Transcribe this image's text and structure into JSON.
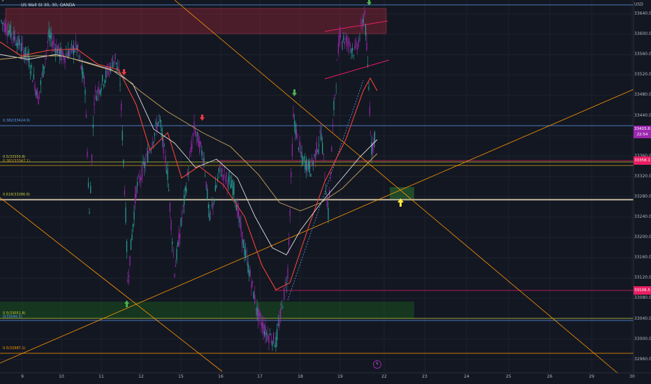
{
  "header": {
    "symbol_title": "US Wall St 30, 30, OANDA",
    "top_ticker": "9",
    "currency": "USD"
  },
  "price_axis": {
    "labels": [
      "33640.0",
      "33600.0",
      "33560.0",
      "33520.0",
      "33480.0",
      "33440.0",
      "33400.0",
      "33360.0",
      "33320.0",
      "33280.0",
      "33240.0",
      "33200.0",
      "33160.0",
      "33120.0",
      "33080.0",
      "33040.0",
      "33000.0",
      "32960.0"
    ]
  },
  "time_axis": {
    "labels": [
      "9",
      "10",
      "11",
      "12",
      "15",
      "16",
      "17",
      "18",
      "19",
      "22",
      "23",
      "24",
      "25",
      "26",
      "29",
      "30"
    ]
  },
  "fib_levels": [
    {
      "label": "0.382(33424.9)",
      "color": "#5b9cf0"
    },
    {
      "label": "0.5(33350.8)",
      "color": "#c0ca33"
    },
    {
      "label": "0.382(33347.1)",
      "color": "#d4a017"
    },
    {
      "label": "0.618(33286.8)",
      "color": "#c0ca33"
    },
    {
      "label": "0.5(33051.8)",
      "color": "#c0ca33"
    },
    {
      "label": "0(33046.5)",
      "color": "#5b9cf0"
    },
    {
      "label": "0.5(32987.1)",
      "color": "#ff9800"
    }
  ],
  "price_badges": {
    "current_price": "33415.6",
    "countdown": "22:54",
    "upper_line_price": "33358.1",
    "lower_line_price": "33106.5"
  },
  "event_marker": {
    "symbol": "ϟ"
  },
  "colors": {
    "background": "#131722",
    "bull": "#26a69a",
    "bear": "#9c27b0",
    "current_price_badge": "#9c27b0",
    "line_badge": "#e91e63",
    "trendline": "#ff9800"
  },
  "chart_data": {
    "type": "candlestick",
    "symbol": "US Wall St 30",
    "timeframe": "30",
    "x_ticks": [
      "9",
      "10",
      "11",
      "12",
      "15",
      "16",
      "17",
      "18",
      "19",
      "22",
      "23",
      "24",
      "25",
      "26",
      "29",
      "30"
    ],
    "y_range": [
      32960,
      33660
    ],
    "key_points": [
      {
        "day": "9",
        "price": 33640
      },
      {
        "day": "10",
        "price": 33560
      },
      {
        "day": "11",
        "price": 33520
      },
      {
        "day": "11",
        "price": 33120
      },
      {
        "day": "12",
        "price": 33330
      },
      {
        "day": "12",
        "price": 33440
      },
      {
        "day": "15",
        "price": 33250
      },
      {
        "day": "15",
        "price": 33420
      },
      {
        "day": "16",
        "price": 33250
      },
      {
        "day": "17",
        "price": 33000
      },
      {
        "day": "17",
        "price": 33060
      },
      {
        "day": "18",
        "price": 33460
      },
      {
        "day": "18",
        "price": 33350
      },
      {
        "day": "19",
        "price": 33600
      },
      {
        "day": "19",
        "price": 33560
      },
      {
        "day": "22",
        "price": 33650
      },
      {
        "day": "22",
        "price": 33415.6
      }
    ],
    "current_price": 33415.6,
    "horizontal_levels": [
      33424.9,
      33358.1,
      33350.8,
      33347.1,
      33286.8,
      33106.5,
      33051.8,
      33046.5,
      32987.1
    ]
  }
}
